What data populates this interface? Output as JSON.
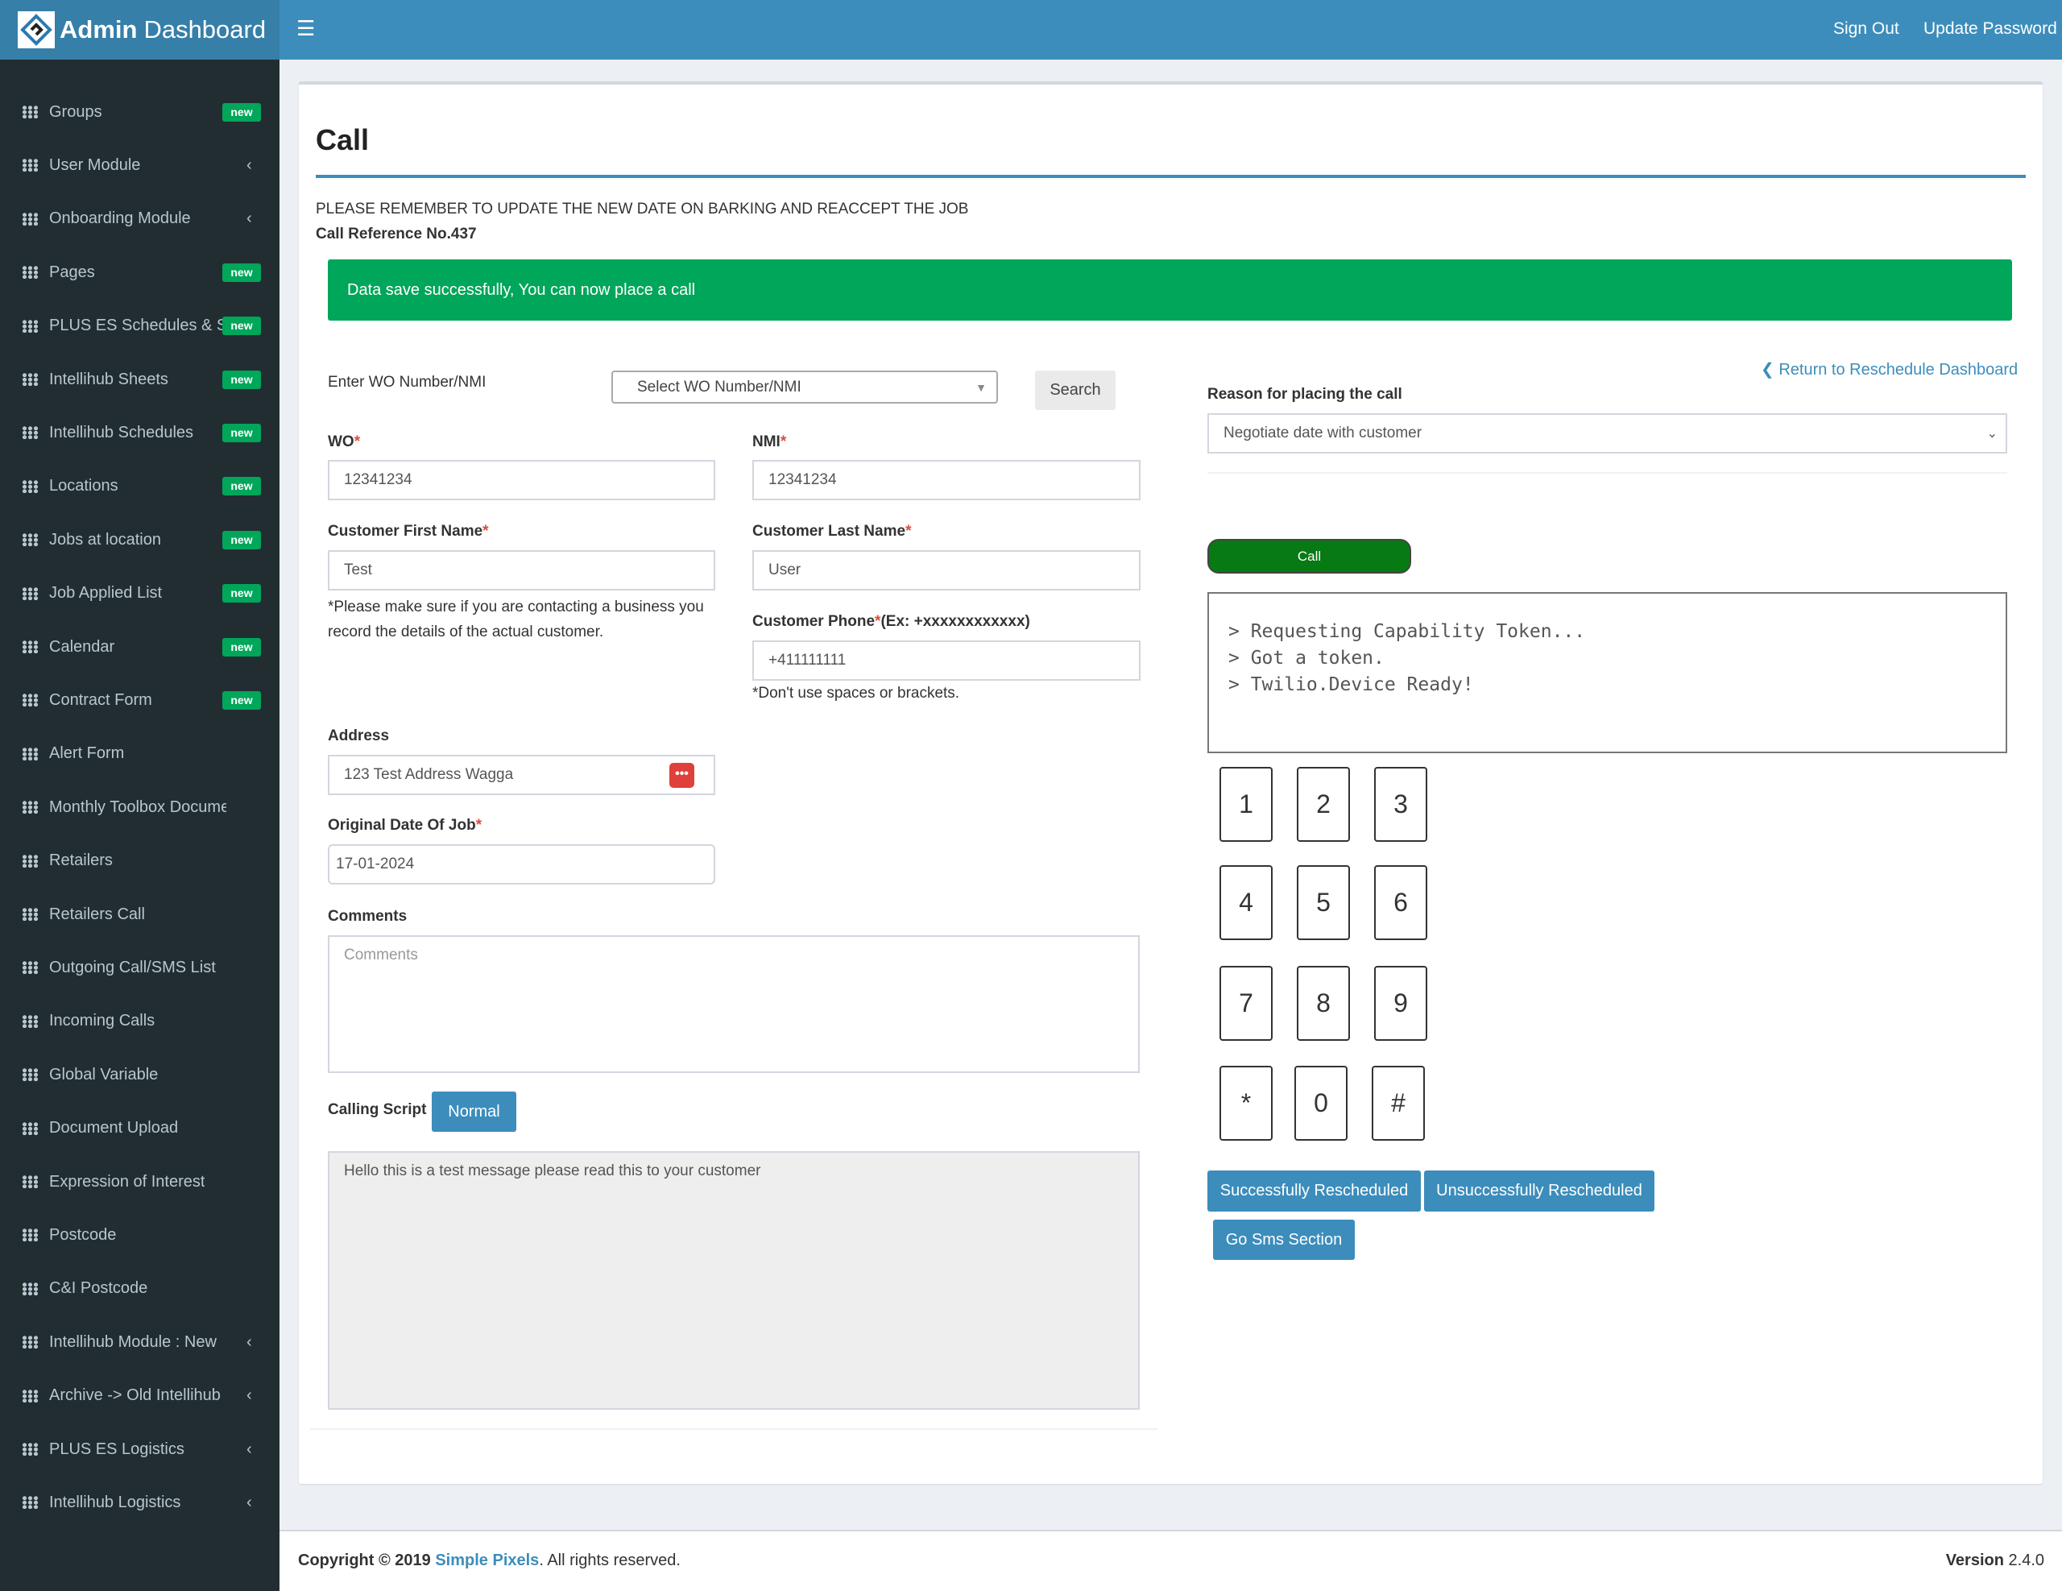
{
  "header": {
    "brand_bold": "Admin",
    "brand_rest": "Dashboard",
    "menu_icon": "hamburger-icon",
    "sign_out": "Sign Out",
    "update_password": "Update Password"
  },
  "sidebar": {
    "items": [
      {
        "label": "Groups",
        "badge": "new"
      },
      {
        "label": "User Module",
        "chevron": "‹"
      },
      {
        "label": "Onboarding Module",
        "chevron": "‹"
      },
      {
        "label": "Pages",
        "badge": "new"
      },
      {
        "label": "PLUS ES Schedules & Sh",
        "badge": "new"
      },
      {
        "label": "Intellihub Sheets",
        "badge": "new"
      },
      {
        "label": "Intellihub Schedules",
        "badge": "new"
      },
      {
        "label": "Locations",
        "badge": "new"
      },
      {
        "label": "Jobs at location",
        "badge": "new"
      },
      {
        "label": "Job Applied List",
        "badge": "new"
      },
      {
        "label": "Calendar",
        "badge": "new"
      },
      {
        "label": "Contract Form",
        "badge": "new"
      },
      {
        "label": "Alert Form"
      },
      {
        "label": "Monthly Toolbox Document"
      },
      {
        "label": "Retailers"
      },
      {
        "label": "Retailers Call"
      },
      {
        "label": "Outgoing Call/SMS List"
      },
      {
        "label": "Incoming Calls"
      },
      {
        "label": "Global Variable"
      },
      {
        "label": "Document Upload"
      },
      {
        "label": "Expression of Interest"
      },
      {
        "label": "Postcode"
      },
      {
        "label": "C&I Postcode"
      },
      {
        "label": "Intellihub Module : New",
        "chevron": "‹"
      },
      {
        "label": "Archive -> Old Intellihub",
        "chevron": "‹"
      },
      {
        "label": "PLUS ES Logistics",
        "chevron": "‹"
      },
      {
        "label": "Intellihub Logistics",
        "chevron": "‹"
      }
    ]
  },
  "page": {
    "title": "Call",
    "notice": "PLEASE REMEMBER TO UPDATE THE NEW DATE ON BARKING AND REACCEPT THE JOB",
    "reference": "Call Reference No.437",
    "alert": "Data save successfully, You can now place a call",
    "alert_color": "#00a65a"
  },
  "form": {
    "wo_search_label": "Enter WO Number/NMI",
    "wo_select": "Select WO Number/NMI",
    "search_button": "Search",
    "wo_label": "WO",
    "wo_value": "12341234",
    "nmi_label": "NMI",
    "nmi_value": "12341234",
    "first_name_label": "Customer First Name",
    "first_name_value": "Test",
    "first_name_note": "*Please make sure if you are contacting a business you record the details of the actual customer.",
    "last_name_label": "Customer Last Name",
    "last_name_value": "User",
    "phone_label": "Customer Phone",
    "phone_hint": "(Ex: +xxxxxxxxxxxx)",
    "phone_value": "+411111111",
    "phone_note": "*Don't use spaces or brackets.",
    "address_label": "Address",
    "address_value": "123 Test Address Wagga",
    "date_label": "Original Date Of Job",
    "date_value": "17-01-2024",
    "comments_label": "Comments",
    "comments_placeholder": "Comments",
    "script_label": "Calling Script",
    "script_button": "Normal",
    "script_text": "Hello this is a test message please read this to your customer",
    "required_mark": "*"
  },
  "call_panel": {
    "return_link": "Return to Reschedule Dashboard",
    "reason_label": "Reason for placing the call",
    "reason_value": "Negotiate date with customer",
    "call_button": "Call",
    "call_color": "#077a14",
    "log": [
      "> Requesting Capability Token...",
      "> Got a token.",
      "> Twilio.Device Ready!"
    ],
    "keys": [
      "1",
      "2",
      "3",
      "4",
      "5",
      "6",
      "7",
      "8",
      "9",
      "*",
      "0",
      "#"
    ],
    "success_button": "Successfully Rescheduled",
    "unsuccess_button": "Unsuccessfully Rescheduled",
    "sms_button": "Go Sms Section"
  },
  "footer": {
    "copyright": "Copyright © 2019",
    "company": "Simple Pixels",
    "rights": ". All rights reserved.",
    "version_label": "Version",
    "version": "2.4.0"
  }
}
